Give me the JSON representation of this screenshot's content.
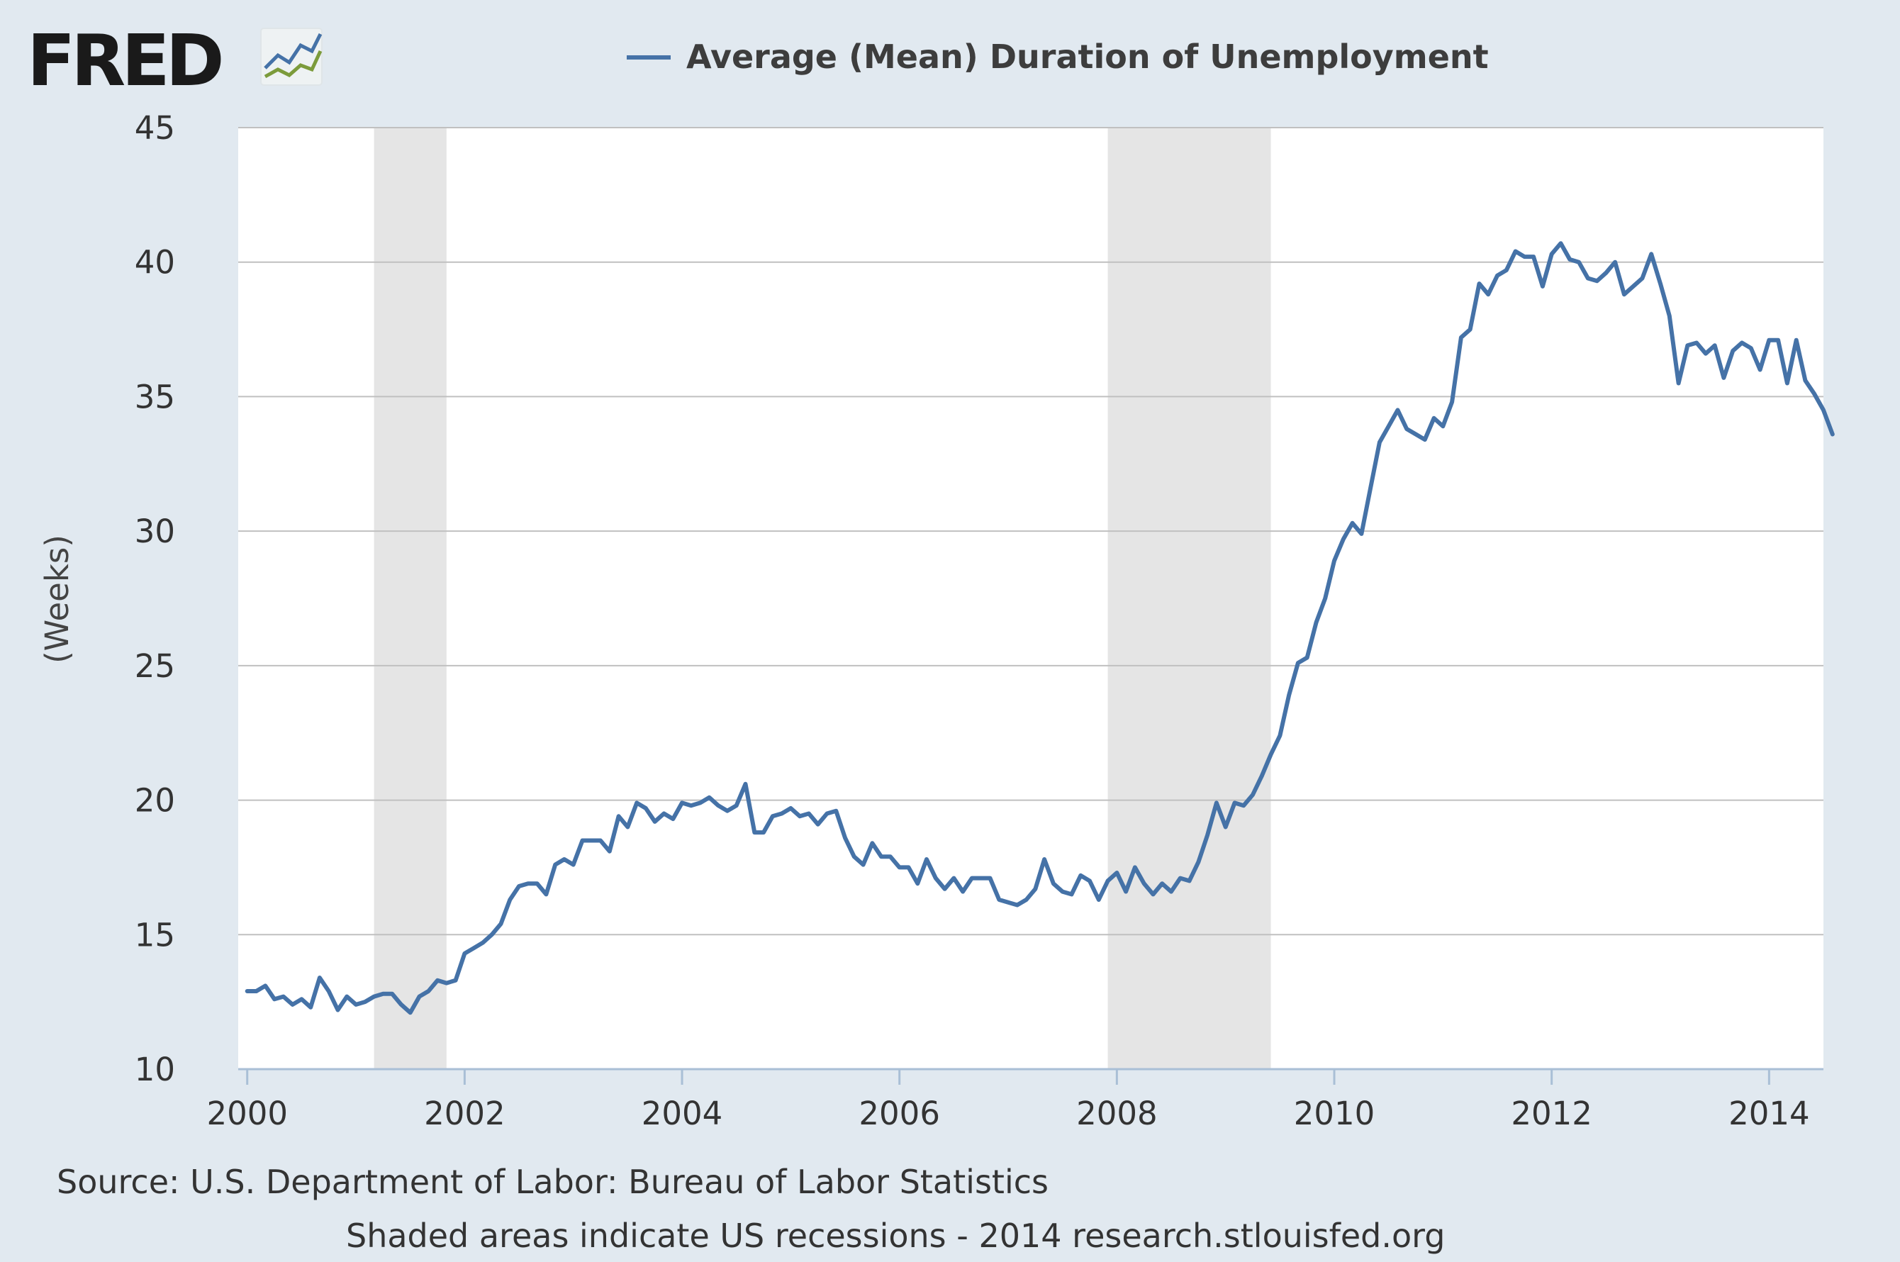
{
  "logo": {
    "text": "FRED"
  },
  "legend": {
    "label": "Average (Mean) Duration of Unemployment",
    "position": "top-center"
  },
  "footer": {
    "source": "Source: U.S. Department of Labor: Bureau of Labor Statistics",
    "note": "Shaded areas indicate US recessions - 2014 research.stlouisfed.org"
  },
  "colors": {
    "page_background": "#e1e9f0",
    "plot_background": "#ffffff",
    "series_line": "#4572a7",
    "gridline": "#c0c0c0",
    "recession_shade": "#e5e5e5",
    "axis_line": "#a9bfd6",
    "logo_line_blue": "#4572a7",
    "logo_line_green": "#7c9b3b"
  },
  "chart_data": {
    "type": "line",
    "title": "",
    "xlabel": "",
    "ylabel": "(Weeks)",
    "xlim": [
      1999.917,
      2014.5
    ],
    "ylim": [
      10,
      45
    ],
    "yticks": [
      10,
      15,
      20,
      25,
      30,
      35,
      40,
      45
    ],
    "ytick_labels": [
      "10",
      "15",
      "20",
      "25",
      "30",
      "35",
      "40",
      "45"
    ],
    "xticks": [
      2000,
      2002,
      2004,
      2006,
      2008,
      2010,
      2012,
      2014
    ],
    "xtick_labels": [
      "2000",
      "2002",
      "2004",
      "2006",
      "2008",
      "2010",
      "2012",
      "2014"
    ],
    "grid": "horizontal",
    "legend_position": "top",
    "recessions": [
      {
        "start": "2001-03",
        "end": "2001-11"
      },
      {
        "start": "2007-12",
        "end": "2009-06"
      }
    ],
    "series": [
      {
        "name": "Average (Mean) Duration of Unemployment",
        "x_start": "2000-01",
        "x_frequency": "monthly",
        "values": [
          12.9,
          12.9,
          13.1,
          12.6,
          12.7,
          12.4,
          12.6,
          12.3,
          13.4,
          12.9,
          12.2,
          12.7,
          12.4,
          12.5,
          12.7,
          12.8,
          12.8,
          12.4,
          12.1,
          12.7,
          12.9,
          13.3,
          13.2,
          13.3,
          14.3,
          14.5,
          14.7,
          15.0,
          15.4,
          16.3,
          16.8,
          16.9,
          16.9,
          16.5,
          17.6,
          17.8,
          17.6,
          18.5,
          18.5,
          18.5,
          18.1,
          19.4,
          19.0,
          19.9,
          19.7,
          19.2,
          19.5,
          19.3,
          19.9,
          19.8,
          19.9,
          20.1,
          19.8,
          19.6,
          19.8,
          20.6,
          18.8,
          18.8,
          19.4,
          19.5,
          19.7,
          19.4,
          19.5,
          19.1,
          19.5,
          19.6,
          18.6,
          17.9,
          17.6,
          18.4,
          17.9,
          17.9,
          17.5,
          17.5,
          16.9,
          17.8,
          17.1,
          16.7,
          17.1,
          16.6,
          17.1,
          17.1,
          17.1,
          16.3,
          16.2,
          16.1,
          16.3,
          16.7,
          17.8,
          16.9,
          16.6,
          16.5,
          17.2,
          17.0,
          16.3,
          17.0,
          17.3,
          16.6,
          17.5,
          16.9,
          16.5,
          16.9,
          16.6,
          17.1,
          17.0,
          17.7,
          18.7,
          19.9,
          19.0,
          19.9,
          19.8,
          20.2,
          20.9,
          21.7,
          22.4,
          23.9,
          25.1,
          25.3,
          26.6,
          27.5,
          28.9,
          29.7,
          30.3,
          29.9,
          31.6,
          33.3,
          33.9,
          34.5,
          33.8,
          33.6,
          33.4,
          34.2,
          33.9,
          34.8,
          37.2,
          37.5,
          39.2,
          38.8,
          39.5,
          39.7,
          40.4,
          40.2,
          40.2,
          39.1,
          40.3,
          40.7,
          40.1,
          40.0,
          39.4,
          39.3,
          39.6,
          40.0,
          38.8,
          39.1,
          39.4,
          40.3,
          39.2,
          38.0,
          35.5,
          36.9,
          37.0,
          36.6,
          36.9,
          35.7,
          36.7,
          37.0,
          36.8,
          36.0,
          37.1,
          37.1,
          35.5,
          37.1,
          35.6,
          35.1,
          34.5,
          33.6
        ]
      }
    ]
  }
}
